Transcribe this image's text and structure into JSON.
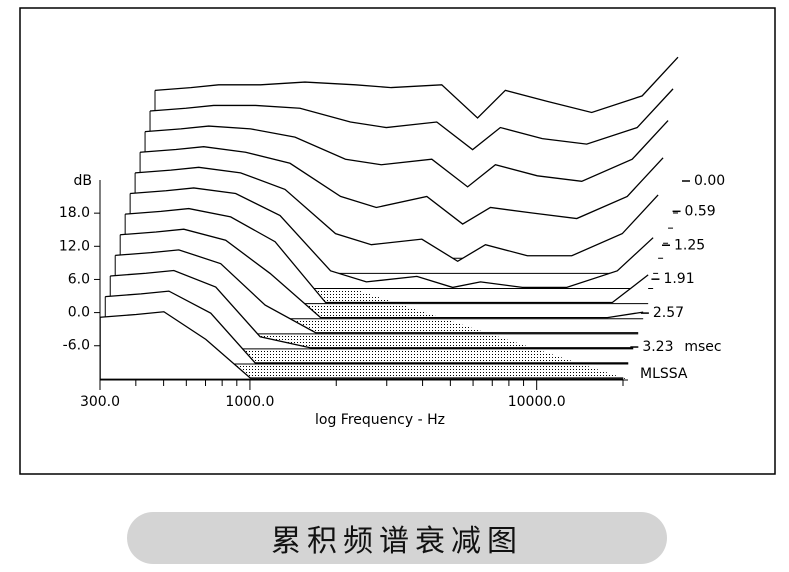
{
  "chart_data": {
    "type": "waterfall",
    "x_label": "log Frequency - Hz",
    "y_label": "dB",
    "time_unit": "msec",
    "brand": "MLSSA",
    "log_x": true,
    "line_color": "#000000",
    "x": [
      300,
      400,
      500,
      700,
      1000,
      1500,
      2000,
      3000,
      4000,
      5000,
      7000,
      10000,
      15000,
      20000
    ],
    "xlim": [
      300,
      20000
    ],
    "xticks": [
      {
        "value": 300,
        "label": "300.0"
      },
      {
        "value": 1000,
        "label": "1000.0"
      },
      {
        "value": 10000,
        "label": "10000.0"
      }
    ],
    "xminorticks": [
      400,
      500,
      600,
      700,
      800,
      900,
      2000,
      3000,
      4000,
      5000,
      6000,
      7000,
      8000,
      9000,
      20000
    ],
    "ylim": [
      -12.2,
      24
    ],
    "yticks": [
      {
        "value": 18,
        "label": "18.0"
      },
      {
        "value": 12,
        "label": "12.0"
      },
      {
        "value": 6,
        "label": "6.0"
      },
      {
        "value": 0,
        "label": "0.0"
      },
      {
        "value": -6,
        "label": "-6.0"
      }
    ],
    "tlim": [
      0,
      3.87
    ],
    "tticks": [
      {
        "value": 0,
        "label": "0.00"
      },
      {
        "value": 0.59,
        "label": "0.59"
      },
      {
        "value": 1.25,
        "label": "1.25"
      },
      {
        "value": 1.91,
        "label": "1.91"
      },
      {
        "value": 2.57,
        "label": "2.57"
      },
      {
        "value": 3.23,
        "label": "3.23"
      }
    ],
    "series": [
      {
        "t": 0,
        "values": [
          10,
          10.5,
          11,
          11,
          11.5,
          11,
          10.5,
          11,
          5,
          10,
          8,
          6,
          9,
          16
        ]
      },
      {
        "t": 0.35,
        "values": [
          9,
          9.5,
          10,
          10,
          9.5,
          7,
          6,
          7,
          2,
          6,
          4,
          3,
          6,
          13
        ]
      },
      {
        "t": 0.7,
        "values": [
          8,
          8.5,
          9,
          8.5,
          7,
          3,
          2,
          3,
          -2,
          2,
          0,
          -1,
          3,
          10
        ]
      },
      {
        "t": 1.05,
        "values": [
          7,
          7.5,
          8,
          7,
          5,
          -1,
          -3,
          -1,
          -6,
          -3,
          -4,
          -5,
          -1,
          6
        ]
      },
      {
        "t": 1.4,
        "values": [
          6,
          6.5,
          7,
          6,
          3,
          -5,
          -7,
          -6,
          -10,
          -7,
          -9,
          -9,
          -5,
          2
        ]
      },
      {
        "t": 1.75,
        "values": [
          5,
          5.5,
          6,
          5,
          1,
          -9,
          -11,
          -10,
          -12,
          -11,
          -12,
          -12,
          -9,
          -3
        ]
      },
      {
        "t": 2.1,
        "values": [
          4,
          4.5,
          5,
          3.5,
          -1,
          -12,
          -12,
          -12,
          -12,
          -12,
          -12,
          -12,
          -12,
          -7
        ]
      },
      {
        "t": 2.45,
        "values": [
          3,
          3.5,
          4,
          2,
          -4,
          -12,
          -12,
          -12,
          -12,
          -12,
          -12,
          -12,
          -12,
          -11
        ]
      },
      {
        "t": 2.8,
        "values": [
          2,
          2.5,
          3,
          0.5,
          -7,
          -12,
          -12,
          -12,
          -12,
          -12,
          -12,
          -12,
          -12,
          -12
        ]
      },
      {
        "t": 3.15,
        "values": [
          1,
          1.5,
          2,
          -1,
          -10,
          -12,
          -12,
          -12,
          -12,
          -12,
          -12,
          -12,
          -12,
          -12
        ]
      },
      {
        "t": 3.5,
        "values": [
          0,
          0.5,
          1,
          -3,
          -12,
          -12,
          -12,
          -12,
          -12,
          -12,
          -12,
          -12,
          -12,
          -12
        ]
      },
      {
        "t": 3.85,
        "values": [
          -1,
          -0.5,
          0,
          -5,
          -12,
          -12,
          -12,
          -12,
          -12,
          -12,
          -12,
          -12,
          -12,
          -12
        ]
      }
    ]
  },
  "caption": "累积频谱衰减图"
}
